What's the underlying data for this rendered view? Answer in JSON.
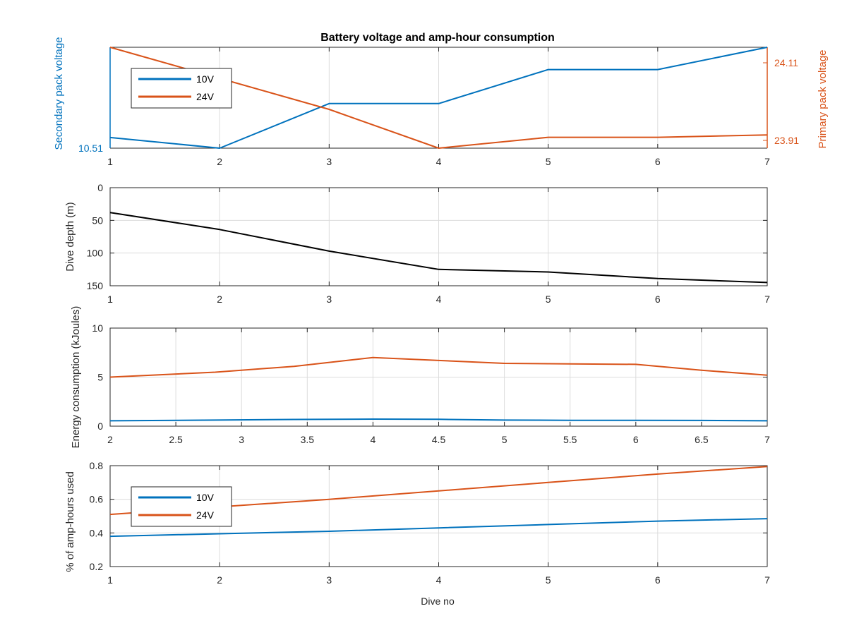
{
  "figure": {
    "title": "Battery voltage and amp-hour consumption",
    "xlabel": "Dive no"
  },
  "colors": {
    "series_10v": "#0072BD",
    "series_24v": "#D95319",
    "depth": "#000000",
    "axis": "#262626",
    "grid": "#dcdcdc"
  },
  "chart_data": [
    {
      "id": "voltage",
      "type": "line",
      "x": [
        1,
        2,
        3,
        4,
        5,
        6,
        7
      ],
      "xlim": [
        1,
        7
      ],
      "xticks": [
        1,
        2,
        3,
        4,
        5,
        6,
        7
      ],
      "xtick_labels": [
        "1",
        "2",
        "3",
        "4",
        "5",
        "6",
        "7"
      ],
      "ylabel_left": "Secondary pack voltage",
      "ylabel_right": "Primary pack voltage",
      "yleft_range": [
        10.51,
        10.7
      ],
      "yleft_ticks": [
        10.51
      ],
      "yleft_tick_labels": [
        "10.51"
      ],
      "yright_range": [
        23.89,
        24.15
      ],
      "yright_ticks": [
        23.91,
        24.11
      ],
      "yright_tick_labels": [
        "23.91",
        "24.11"
      ],
      "grid": true,
      "legend": {
        "placement": "top-left",
        "entries": [
          "10V",
          "24V"
        ]
      },
      "series": [
        {
          "name": "10V",
          "axis": "left",
          "values": [
            10.53,
            10.51,
            10.594,
            10.594,
            10.658,
            10.658,
            10.7
          ]
        },
        {
          "name": "24V",
          "axis": "right",
          "values": [
            24.15,
            24.07,
            23.99,
            23.89,
            23.918,
            23.918,
            23.924
          ]
        }
      ]
    },
    {
      "id": "depth",
      "type": "line",
      "x": [
        1,
        2,
        3,
        4,
        5,
        6,
        7
      ],
      "xlim": [
        1,
        7
      ],
      "xticks": [
        1,
        2,
        3,
        4,
        5,
        6,
        7
      ],
      "xtick_labels": [
        "1",
        "2",
        "3",
        "4",
        "5",
        "6",
        "7"
      ],
      "ylabel": "Dive depth (m)",
      "ylim": [
        0,
        150
      ],
      "y_reversed": true,
      "yticks": [
        0,
        50,
        100,
        150
      ],
      "ytick_labels": [
        "0",
        "50",
        "100",
        "150"
      ],
      "grid": true,
      "series": [
        {
          "values": [
            38,
            64,
            97,
            125,
            129,
            139,
            145
          ]
        }
      ]
    },
    {
      "id": "energy",
      "type": "line",
      "x": [
        2,
        2.8,
        3.4,
        4,
        4.5,
        5,
        5.5,
        6,
        6.5,
        7
      ],
      "xlim": [
        2,
        7
      ],
      "xticks": [
        2,
        2.5,
        3,
        3.5,
        4,
        4.5,
        5,
        5.5,
        6,
        6.5,
        7
      ],
      "xtick_labels": [
        "2",
        "2.5",
        "3",
        "3.5",
        "4",
        "4.5",
        "5",
        "5.5",
        "6",
        "6.5",
        "7"
      ],
      "ylabel": "Energy consumption (kJoules)",
      "ylim": [
        0,
        10
      ],
      "yticks": [
        0,
        5,
        10
      ],
      "ytick_labels": [
        "0",
        "5",
        "10"
      ],
      "grid": true,
      "series": [
        {
          "name": "10V",
          "values": [
            0.55,
            0.62,
            0.68,
            0.72,
            0.7,
            0.62,
            0.6,
            0.6,
            0.58,
            0.55
          ]
        },
        {
          "name": "24V",
          "values": [
            5.0,
            5.5,
            6.1,
            7.0,
            6.7,
            6.4,
            6.35,
            6.3,
            5.7,
            5.2
          ]
        }
      ]
    },
    {
      "id": "amphours",
      "type": "line",
      "x": [
        1,
        2,
        3,
        4,
        5,
        6,
        7
      ],
      "xlim": [
        1,
        7
      ],
      "xticks": [
        1,
        2,
        3,
        4,
        5,
        6,
        7
      ],
      "xtick_labels": [
        "1",
        "2",
        "3",
        "4",
        "5",
        "6",
        "7"
      ],
      "ylabel": "% of amp-hours used",
      "ylim": [
        0.2,
        0.8
      ],
      "yticks": [
        0.2,
        0.4,
        0.6,
        0.8
      ],
      "ytick_labels": [
        "0.2",
        "0.4",
        "0.6",
        "0.8"
      ],
      "grid": true,
      "legend": {
        "placement": "top-left",
        "entries": [
          "10V",
          "24V"
        ]
      },
      "series": [
        {
          "name": "10V",
          "values": [
            0.38,
            0.395,
            0.41,
            0.43,
            0.45,
            0.47,
            0.485
          ]
        },
        {
          "name": "24V",
          "values": [
            0.51,
            0.555,
            0.6,
            0.65,
            0.7,
            0.75,
            0.795
          ]
        }
      ]
    }
  ]
}
